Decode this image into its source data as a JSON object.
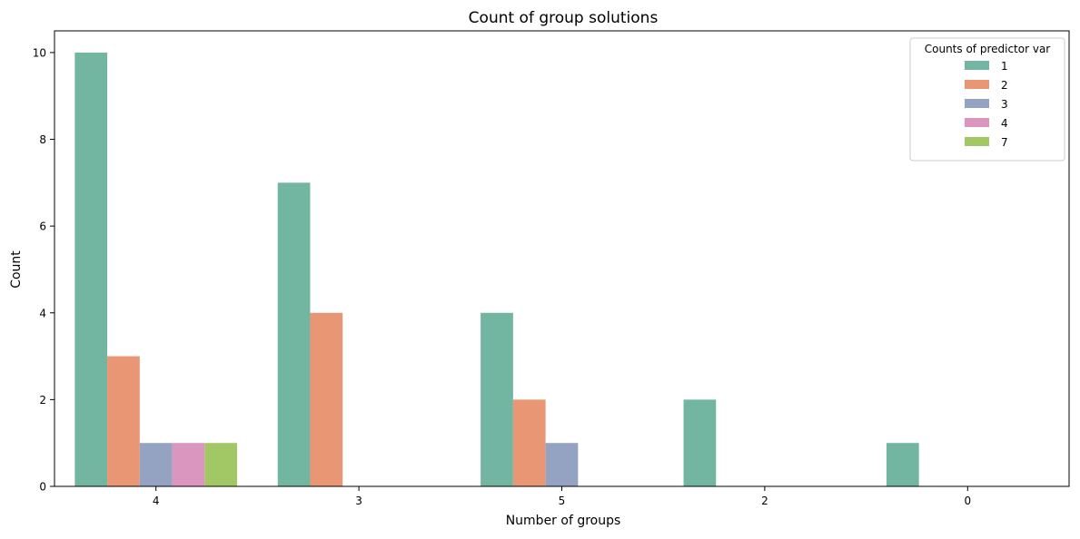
{
  "chart_data": {
    "type": "bar",
    "title": "Count of group solutions",
    "xlabel": "Number of groups",
    "ylabel": "Count",
    "categories": [
      "4",
      "3",
      "5",
      "2",
      "0"
    ],
    "ylim": [
      0,
      10.5
    ],
    "yticks": [
      0,
      2,
      4,
      6,
      8,
      10
    ],
    "grid": false,
    "legend": {
      "title": "Counts of predictor var",
      "placement": "top-right"
    },
    "series": [
      {
        "name": "1",
        "color": "#72b6a1",
        "values": [
          10,
          7,
          4,
          2,
          1
        ]
      },
      {
        "name": "2",
        "color": "#e99675",
        "values": [
          3,
          4,
          2,
          0,
          0
        ]
      },
      {
        "name": "3",
        "color": "#95a3c3",
        "values": [
          1,
          0,
          1,
          0,
          0
        ]
      },
      {
        "name": "4",
        "color": "#db96c0",
        "values": [
          1,
          0,
          0,
          0,
          0
        ]
      },
      {
        "name": "7",
        "color": "#a2c865",
        "values": [
          1,
          0,
          0,
          0,
          0
        ]
      }
    ]
  }
}
